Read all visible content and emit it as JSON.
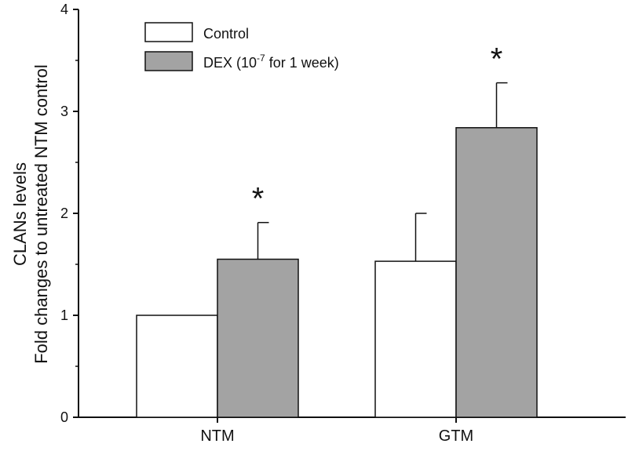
{
  "chart_data": {
    "type": "bar",
    "categories": [
      "NTM",
      "GTM"
    ],
    "series": [
      {
        "name": "Control",
        "values": [
          1.0,
          1.53
        ],
        "errors": [
          0.0,
          0.47
        ],
        "color": "#ffffff",
        "significance": [
          "",
          ""
        ]
      },
      {
        "name": "DEX (10-7 for 1 week)",
        "values": [
          1.55,
          2.84
        ],
        "errors": [
          0.36,
          0.44
        ],
        "color": "#a3a3a3",
        "significance": [
          "*",
          "*"
        ]
      }
    ],
    "title": "",
    "xlabel": "",
    "ylabel": [
      "CLANs levels",
      "Fold changes to untreated NTM control"
    ],
    "ylim": [
      0,
      4
    ],
    "yticks": [
      0,
      1,
      2,
      3,
      4
    ],
    "legend_position": "top-left",
    "legend": {
      "control_label": "Control",
      "dex_label_prefix": "DEX (10",
      "dex_label_exponent": "-7",
      "dex_label_suffix": " for 1 week)"
    }
  }
}
